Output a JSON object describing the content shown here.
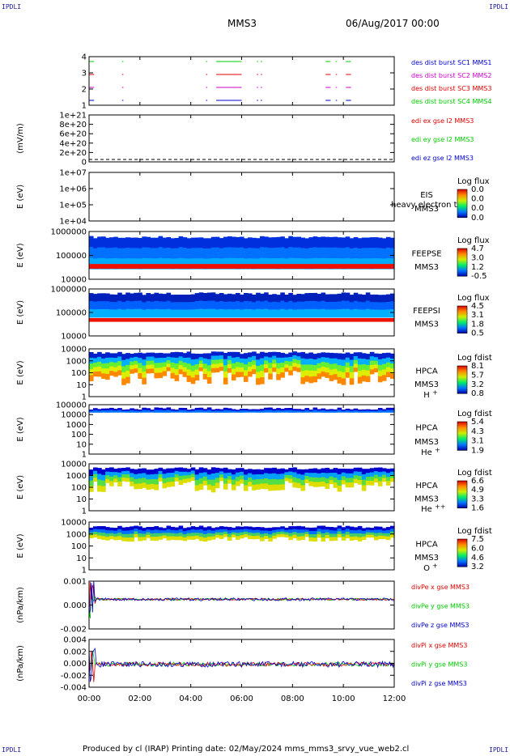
{
  "corners": {
    "tl": "IPDLI",
    "tr": "IPDLI",
    "bl": "IPDLI",
    "br": "IPDLI"
  },
  "header": {
    "spacecraft": "MMS3",
    "date": "06/Aug/2017 00:00"
  },
  "footer": {
    "text": "Produced by cl (IRAP)   Printing date: 02/May/2024   mms_mms3_srvy_vue_web2.cl"
  },
  "xaxis": {
    "ticks": [
      "00:00",
      "02:00",
      "04:00",
      "06:00",
      "08:00",
      "10:00",
      "12:00"
    ],
    "range_hours": [
      0,
      12
    ]
  },
  "colors": {
    "red": "#e00000",
    "green": "#00cc00",
    "blue": "#0000cc",
    "magenta": "#cc00cc"
  },
  "chart_data": [
    {
      "type": "line",
      "panel": "burst",
      "yticks": [
        "1",
        "2",
        "3",
        "4"
      ],
      "legend": [
        {
          "label": "des dist burst SC1 MMS1",
          "color": "#0000cc"
        },
        {
          "label": "des dist burst SC2 MMS2",
          "color": "#cc00cc"
        },
        {
          "label": "des dist burst SC3 MMS3",
          "color": "#e00000"
        },
        {
          "label": "des dist burst SC4 MMS4",
          "color": "#00cc00"
        }
      ],
      "intervals_hours": [
        [
          0.0,
          0.2
        ],
        [
          1.3,
          1.35
        ],
        [
          4.6,
          4.65
        ],
        [
          5.0,
          6.0
        ],
        [
          6.6,
          6.65
        ],
        [
          6.75,
          6.8
        ],
        [
          9.3,
          9.5
        ],
        [
          9.7,
          9.75
        ],
        [
          10.1,
          10.3
        ]
      ]
    },
    {
      "type": "line",
      "panel": "edi",
      "ylabel": "(mV/m)",
      "yticks": [
        "0",
        "2e+20",
        "4e+20",
        "6e+20",
        "8e+20",
        "1e+21"
      ],
      "ylim": [
        0,
        1e+21
      ],
      "legend": [
        {
          "label": "edi ex gse l2 MMS3",
          "color": "#e00000"
        },
        {
          "label": "edi ey gse l2 MMS3",
          "color": "#00cc00"
        },
        {
          "label": "edi ez gse l2 MMS3",
          "color": "#0000cc"
        }
      ]
    },
    {
      "type": "heatmap",
      "panel": "eis",
      "ylabel": "E (eV)",
      "yticks": [
        "1e+04",
        "1e+05",
        "1e+06",
        "1e+07"
      ],
      "labels": [
        "EIS",
        "MMS3"
      ],
      "overlap": "heavy electron to",
      "cbtitle": "Log flux",
      "cbticks": [
        "0.0",
        "0.0",
        "0.0",
        "0.0"
      ]
    },
    {
      "type": "heatmap",
      "panel": "feepse",
      "ylabel": "E (eV)",
      "yticks": [
        "10000",
        "100000",
        "1000000"
      ],
      "labels": [
        "FEEPSE",
        "MMS3"
      ],
      "cbtitle": "Log flux",
      "cbticks": [
        "4.7",
        "3.0",
        "1.2",
        "-0.5"
      ]
    },
    {
      "type": "heatmap",
      "panel": "feepsi",
      "ylabel": "E (eV)",
      "yticks": [
        "10000",
        "100000",
        "1000000"
      ],
      "labels": [
        "FEEPSI",
        "MMS3"
      ],
      "cbtitle": "Log flux",
      "cbticks": [
        "4.5",
        "3.1",
        "1.8",
        "0.5"
      ]
    },
    {
      "type": "heatmap",
      "panel": "hpca_h",
      "ylabel": "E (eV)",
      "yticks": [
        "1",
        "10",
        "100",
        "1000",
        "10000"
      ],
      "labels": [
        "HPCA",
        "MMS3"
      ],
      "ion": "H",
      "ionsup": "+",
      "cbtitle": "Log fdist",
      "cbticks": [
        "8.1",
        "5.7",
        "3.2",
        "0.8"
      ]
    },
    {
      "type": "heatmap",
      "panel": "hpca_he",
      "ylabel": "E (eV)",
      "yticks": [
        "1",
        "10",
        "100",
        "1000",
        "10000",
        "100000"
      ],
      "labels": [
        "HPCA",
        "MMS3"
      ],
      "ion": "He",
      "ionsup": "+",
      "cbtitle": "Log fdist",
      "cbticks": [
        "5.4",
        "4.3",
        "3.1",
        "1.9"
      ]
    },
    {
      "type": "heatmap",
      "panel": "hpca_hepp",
      "ylabel": "E (eV)",
      "yticks": [
        "1",
        "10",
        "100",
        "1000",
        "10000"
      ],
      "labels": [
        "HPCA",
        "MMS3"
      ],
      "ion": "He",
      "ionsup": "++",
      "cbtitle": "Log fdist",
      "cbticks": [
        "6.6",
        "4.9",
        "3.3",
        "1.6"
      ]
    },
    {
      "type": "heatmap",
      "panel": "hpca_o",
      "ylabel": "E (eV)",
      "yticks": [
        "1",
        "10",
        "100",
        "1000",
        "10000"
      ],
      "labels": [
        "HPCA",
        "MMS3"
      ],
      "ion": "O",
      "ionsup": "+",
      "cbtitle": "Log fdist",
      "cbticks": [
        "7.5",
        "6.0",
        "4.6",
        "3.2"
      ]
    },
    {
      "type": "line",
      "panel": "divpe",
      "ylabel": "(nPa/km)",
      "yticks": [
        "-0.002",
        "0.000",
        "0.001"
      ],
      "ylim": [
        -0.0023,
        0.0016
      ],
      "legend": [
        {
          "label": "divPe x gse MMS3",
          "color": "#e00000"
        },
        {
          "label": "divPe y gse MMS3",
          "color": "#00cc00"
        },
        {
          "label": "divPe z gse MMS3",
          "color": "#0000cc"
        }
      ]
    },
    {
      "type": "line",
      "panel": "divpi",
      "ylabel": "(nPa/km)",
      "yticks": [
        "-0.004",
        "-0.002",
        "0.000",
        "0.002",
        "0.004"
      ],
      "ylim": [
        -0.0048,
        0.0052
      ],
      "legend": [
        {
          "label": "divPi x gse MMS3",
          "color": "#e00000"
        },
        {
          "label": "divPi y gse MMS3",
          "color": "#00cc00"
        },
        {
          "label": "divPi z gse MMS3",
          "color": "#0000cc"
        }
      ]
    }
  ]
}
